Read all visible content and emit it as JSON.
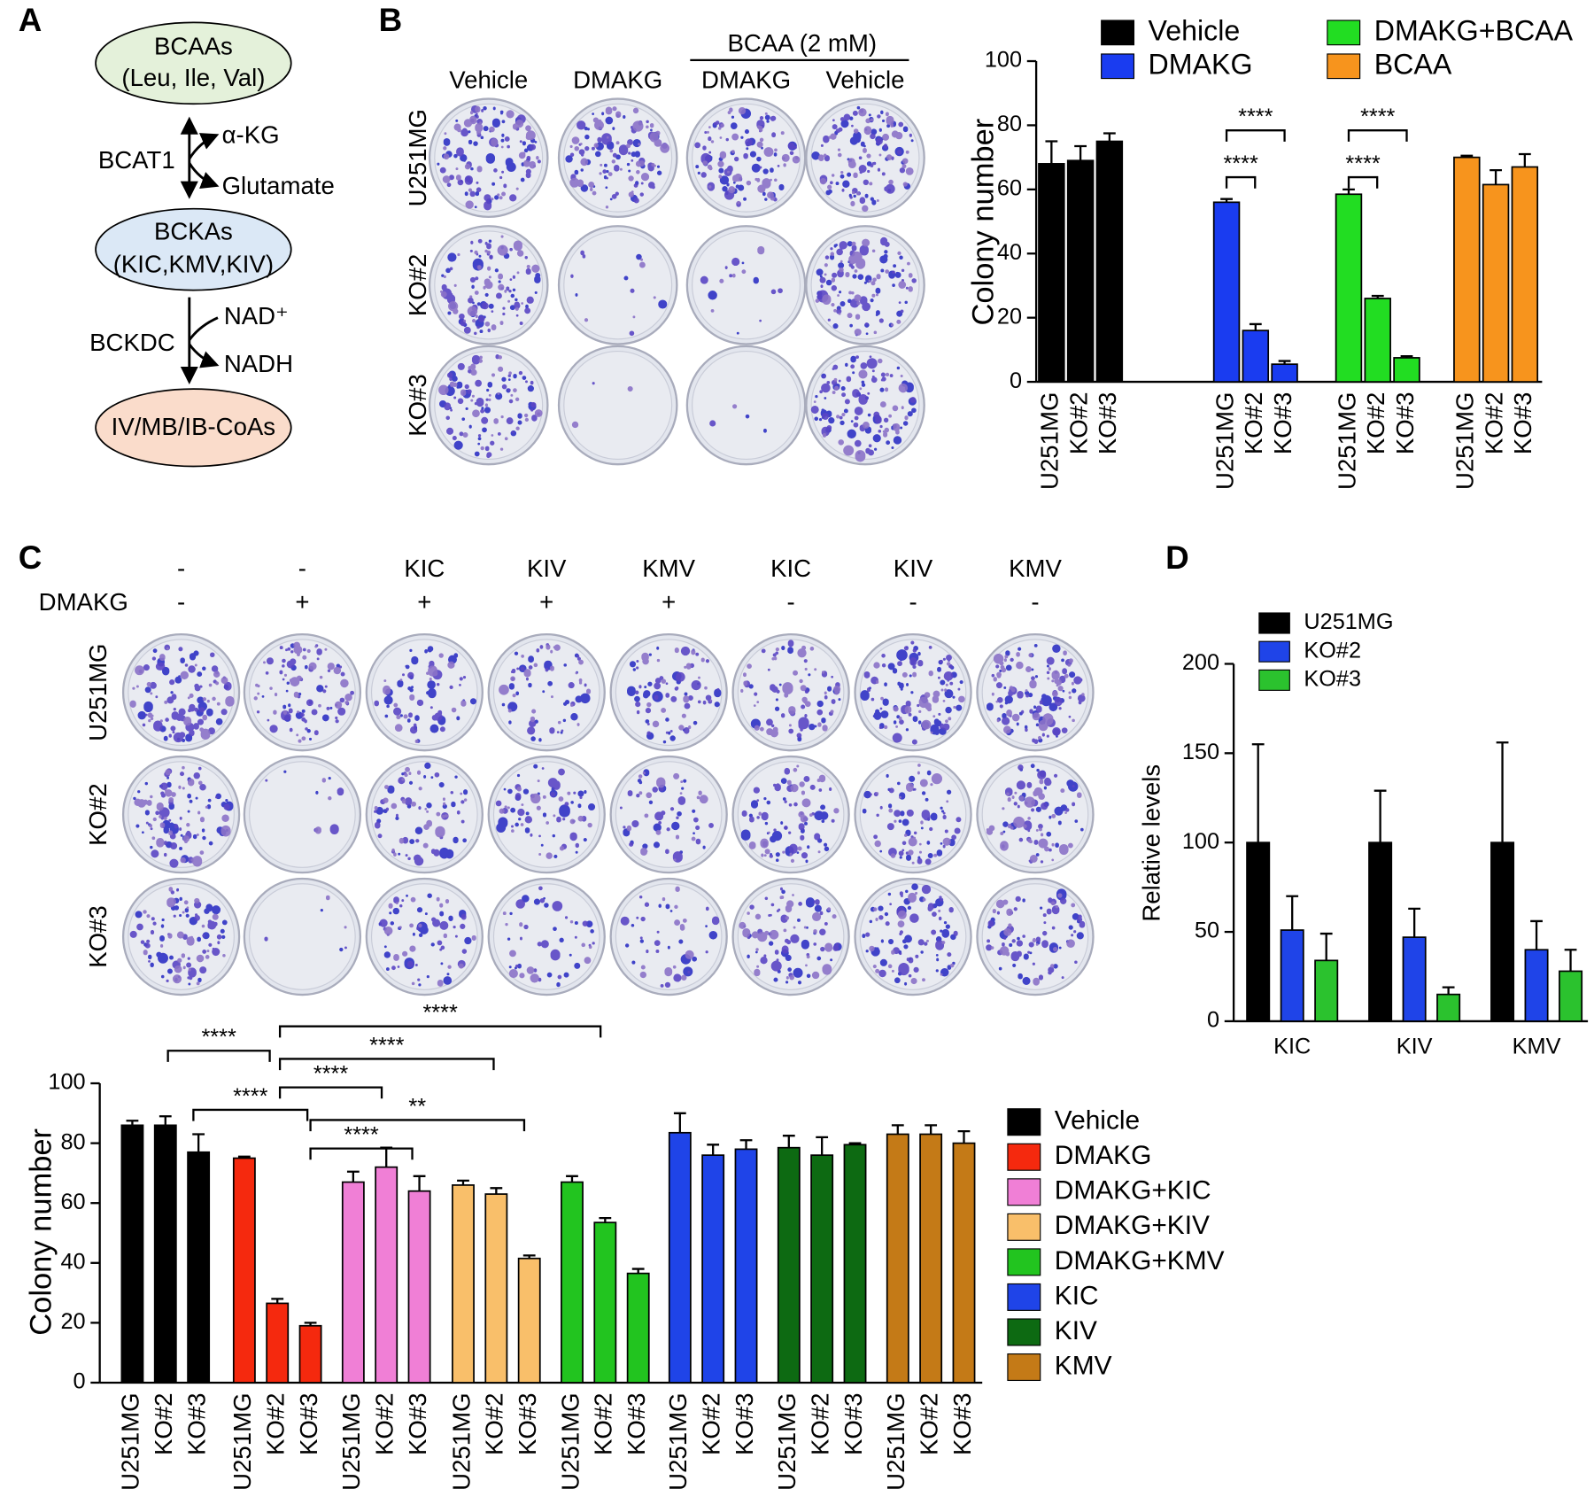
{
  "panel_labels": {
    "a": "A",
    "b": "B",
    "c": "C",
    "d": "D"
  },
  "diagram": {
    "nodes": [
      {
        "name": "BCAAs",
        "detail": "(Leu, Ile, Val)"
      },
      {
        "name": "BCKAs",
        "detail": "(KIC,KMV,KIV)"
      },
      {
        "name": "IV/MB/IB-CoAs"
      }
    ],
    "reactions": [
      {
        "enzyme": "BCAT1",
        "cofactors": [
          "α-KG",
          "Glutamate"
        ]
      },
      {
        "enzyme": "BCKDC",
        "cofactors": [
          "NAD⁺",
          "NADH"
        ]
      }
    ]
  },
  "plates_b": {
    "group_label": "BCAA (2 mM)",
    "columns": [
      "Vehicle",
      "DMAKG",
      "DMAKG",
      "Vehicle"
    ],
    "rows": [
      "U251MG",
      "KO#2",
      "KO#3"
    ]
  },
  "plates_c": {
    "dmakg_label": "DMAKG",
    "supplements": [
      "-",
      "-",
      "KIC",
      "KIV",
      "KMV",
      "KIC",
      "KIV",
      "KMV"
    ],
    "dmakg": [
      "-",
      "+",
      "+",
      "+",
      "+",
      "-",
      "-",
      "-"
    ],
    "rows": [
      "U251MG",
      "KO#2",
      "KO#3"
    ]
  },
  "chart_data": [
    {
      "type": "bar",
      "ylabel": "Colony number",
      "categories": [
        "U251MG",
        "KO#2",
        "KO#3"
      ],
      "series": [
        {
          "name": "Vehicle",
          "color": "#000000",
          "values": [
            68,
            69,
            75
          ],
          "errors": [
            7,
            4.5,
            2.5
          ]
        },
        {
          "name": "DMAKG",
          "color": "#1a3cf0",
          "values": [
            56,
            16,
            5.5
          ],
          "errors": [
            1,
            2,
            1
          ]
        },
        {
          "name": "DMAKG+BCAA",
          "color": "#22dd22",
          "values": [
            58.5,
            26,
            7.5
          ],
          "errors": [
            1.5,
            0.8,
            0.5
          ]
        },
        {
          "name": "BCAA",
          "color": "#f7941d",
          "values": [
            70,
            61.5,
            67
          ],
          "errors": [
            0.5,
            4.5,
            4
          ]
        }
      ],
      "ylim": [
        0,
        100
      ],
      "yticks": [
        0,
        20,
        40,
        60,
        80,
        100
      ],
      "annotations": [
        "****",
        "****",
        "****",
        "****"
      ]
    },
    {
      "type": "bar",
      "ylabel": "Colony number",
      "categories": [
        "U251MG",
        "KO#2",
        "KO#3"
      ],
      "series": [
        {
          "name": "Vehicle",
          "color": "#000000",
          "values": [
            86,
            86,
            77
          ],
          "errors": [
            1.5,
            3,
            6
          ]
        },
        {
          "name": "DMAKG",
          "color": "#f5290e",
          "values": [
            75,
            26.5,
            19
          ],
          "errors": [
            0.5,
            1.5,
            1
          ]
        },
        {
          "name": "DMAKG+KIC",
          "color": "#f07fd6",
          "values": [
            67,
            72,
            64
          ],
          "errors": [
            3.5,
            6.5,
            5
          ]
        },
        {
          "name": "DMAKG+KIV",
          "color": "#f9bf6a",
          "values": [
            66,
            63,
            41.5
          ],
          "errors": [
            1.5,
            2,
            1
          ]
        },
        {
          "name": "DMAKG+KMV",
          "color": "#22c41f",
          "values": [
            67,
            53.5,
            36.5
          ],
          "errors": [
            2,
            1.5,
            1.5
          ]
        },
        {
          "name": "KIC",
          "color": "#1f44e8",
          "values": [
            83.5,
            76,
            78
          ],
          "errors": [
            6.5,
            3.5,
            3
          ]
        },
        {
          "name": "KIV",
          "color": "#0d6a12",
          "values": [
            78.5,
            76,
            79.5
          ],
          "errors": [
            4,
            6,
            0.5
          ]
        },
        {
          "name": "KMV",
          "color": "#c47a17",
          "values": [
            83,
            83,
            80
          ],
          "errors": [
            3,
            3,
            4
          ]
        }
      ],
      "ylim": [
        0,
        100
      ],
      "yticks": [
        0,
        20,
        40,
        60,
        80,
        100
      ],
      "annotations": [
        "****",
        "****",
        "****",
        "****",
        "****",
        "**",
        "****"
      ]
    },
    {
      "type": "bar",
      "ylabel": "Relative levels",
      "categories": [
        "KIC",
        "KIV",
        "KMV"
      ],
      "series": [
        {
          "name": "U251MG",
          "color": "#000000",
          "values": [
            100,
            100,
            100
          ],
          "errors": [
            55,
            29,
            56
          ]
        },
        {
          "name": "KO#2",
          "color": "#1f44e8",
          "values": [
            51,
            47,
            40
          ],
          "errors": [
            19,
            16,
            16
          ]
        },
        {
          "name": "KO#3",
          "color": "#2bc22e",
          "values": [
            34,
            15,
            28
          ],
          "errors": [
            15,
            4,
            12
          ]
        }
      ],
      "ylim": [
        0,
        200
      ],
      "yticks": [
        0,
        50,
        100,
        150,
        200
      ]
    }
  ]
}
